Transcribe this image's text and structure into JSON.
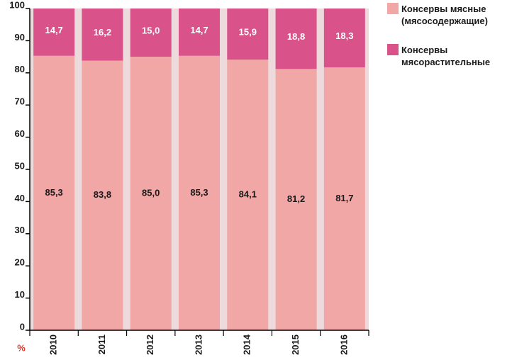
{
  "chart_data": {
    "type": "stacked_bar",
    "categories": [
      "2010",
      "2011",
      "2012",
      "2013",
      "2014",
      "2015",
      "2016"
    ],
    "series": [
      {
        "name": "Консервы мясные (мясосодержащие)",
        "color": "#f2a7a7",
        "values": [
          85.3,
          83.8,
          85.0,
          85.3,
          84.1,
          81.2,
          81.7
        ],
        "value_labels": [
          "85,3",
          "83,8",
          "85,0",
          "85,3",
          "84,1",
          "81,2",
          "81,7"
        ]
      },
      {
        "name": "Консервы мясорастительные",
        "color": "#d9538a",
        "values": [
          14.7,
          16.2,
          15.0,
          14.7,
          15.9,
          18.8,
          18.3
        ],
        "value_labels": [
          "14,7",
          "16,2",
          "15,0",
          "14,7",
          "15,9",
          "18,8",
          "18,3"
        ]
      }
    ],
    "y_label": "%",
    "ylim": [
      0,
      100
    ],
    "yticks": [
      0,
      10,
      20,
      30,
      40,
      50,
      60,
      70,
      80,
      90,
      100
    ]
  }
}
